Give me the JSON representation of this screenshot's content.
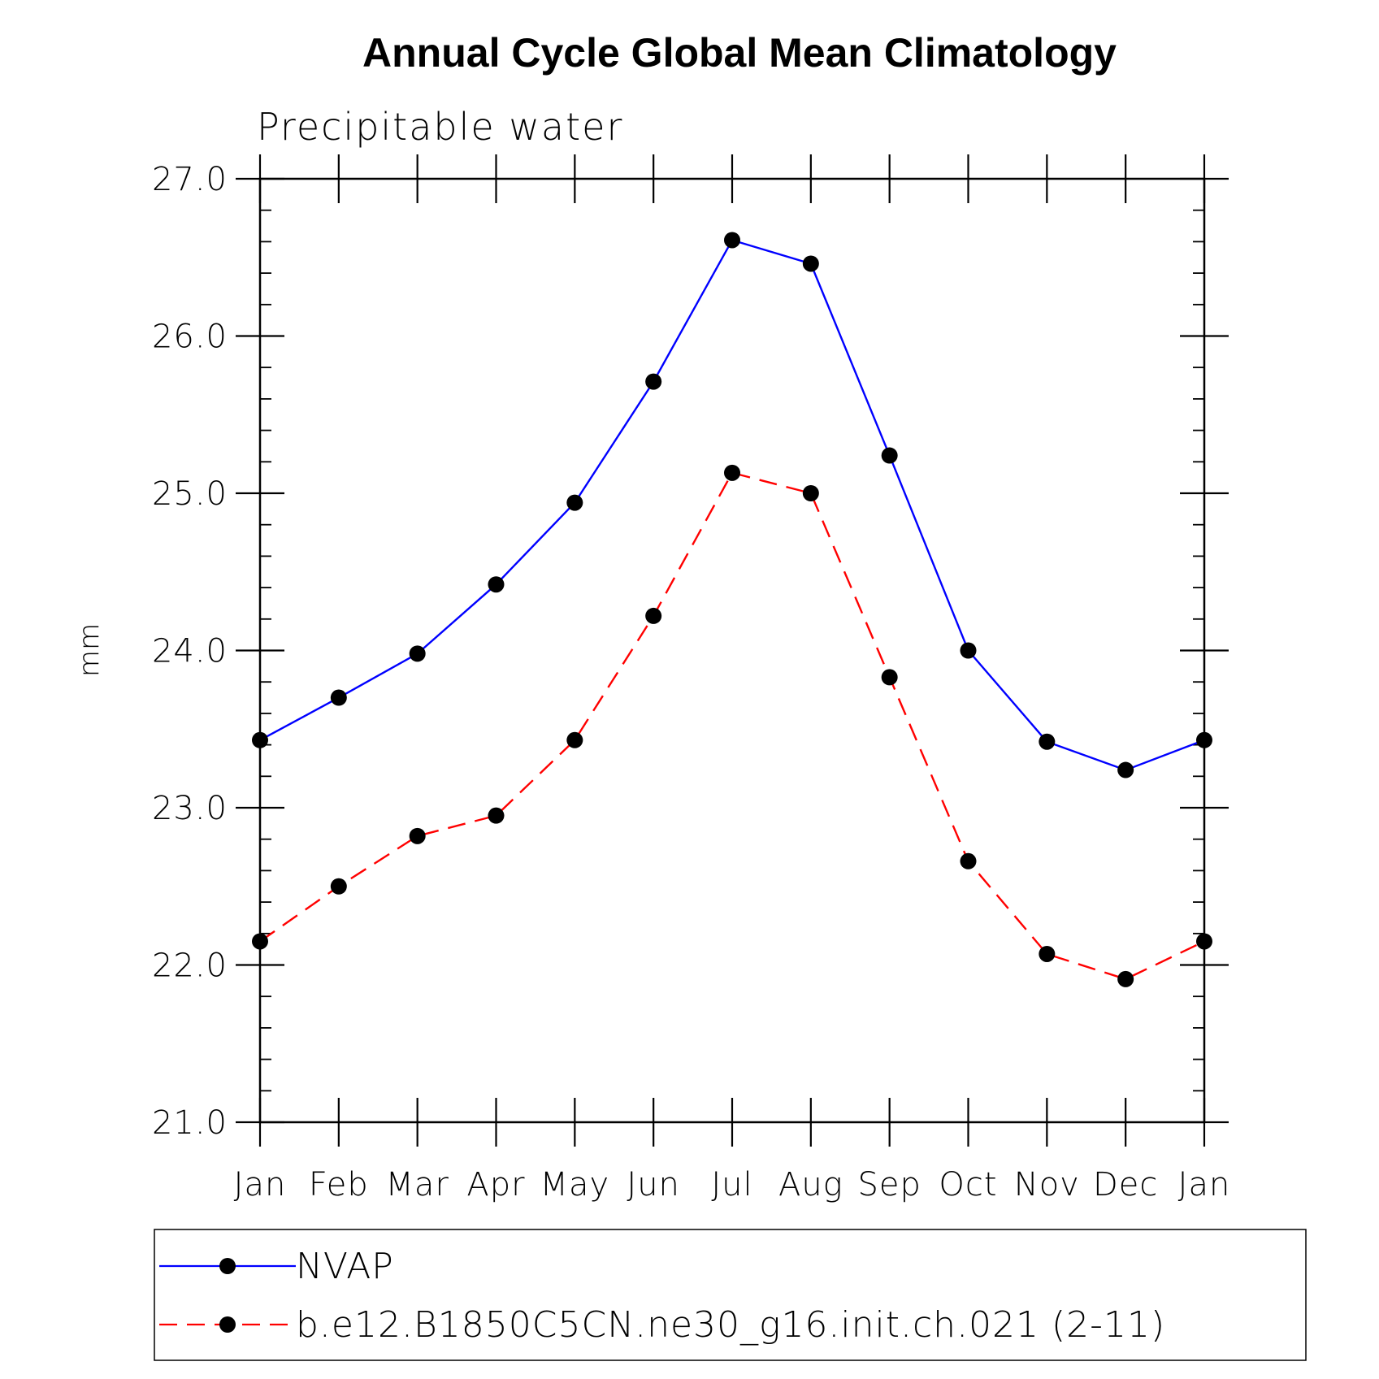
{
  "chart_data": {
    "type": "line",
    "title": "Annual Cycle Global Mean Climatology",
    "subtitle": "Precipitable water",
    "ylabel": "mm",
    "xlabel": "",
    "categories": [
      "Jan",
      "Feb",
      "Mar",
      "Apr",
      "May",
      "Jun",
      "Jul",
      "Aug",
      "Sep",
      "Oct",
      "Nov",
      "Dec",
      "Jan"
    ],
    "ylim": [
      21.0,
      27.0
    ],
    "yticks": [
      "21.0",
      "22.0",
      "23.0",
      "24.0",
      "25.0",
      "26.0",
      "27.0"
    ],
    "series": [
      {
        "name": "NVAP",
        "color": "#0000ff",
        "style": "solid",
        "values": [
          23.43,
          23.7,
          23.98,
          24.42,
          24.94,
          25.71,
          26.61,
          26.46,
          25.24,
          24.0,
          23.42,
          23.24,
          23.43
        ]
      },
      {
        "name": "b.e12.B1850C5CN.ne30_g16.init.ch.021 (2-11)",
        "color": "#ff0000",
        "style": "dashed",
        "values": [
          22.15,
          22.5,
          22.82,
          22.95,
          23.43,
          24.22,
          25.13,
          25.0,
          23.83,
          22.66,
          22.07,
          21.91,
          22.15
        ]
      }
    ]
  }
}
